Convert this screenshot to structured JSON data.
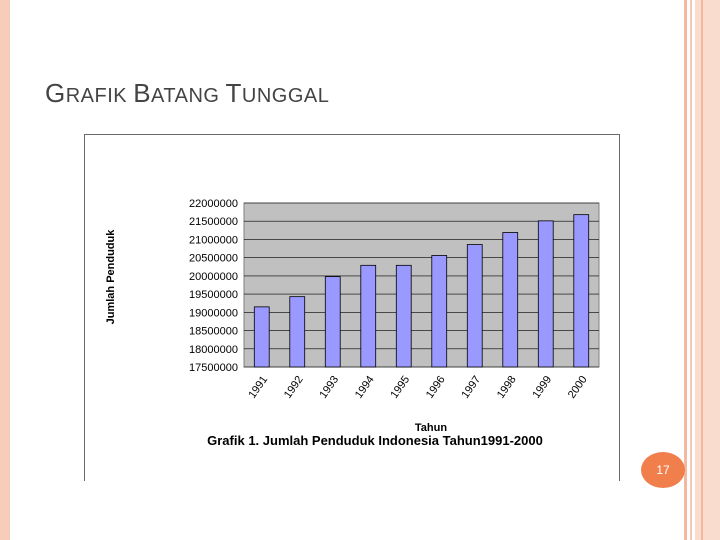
{
  "slide": {
    "title_parts": [
      {
        "big": "G",
        "small": "RAFIK "
      },
      {
        "big": "B",
        "small": "ATANG "
      },
      {
        "big": "T",
        "small": "UNGGAL"
      }
    ],
    "page_number": "17"
  },
  "colors": {
    "bar": "#9999ff",
    "plot_bg": "#c0c0c0",
    "accent": "#f07f4c"
  },
  "chart_data": {
    "type": "bar",
    "title": "Grafik 1. Jumlah Penduduk Indonesia Tahun1991-2000",
    "xlabel": "Tahun",
    "ylabel": "Jumlah Penduduk",
    "categories": [
      "1991",
      "1992",
      "1993",
      "1994",
      "1995",
      "1996",
      "1997",
      "1998",
      "1999",
      "2000"
    ],
    "values": [
      19150000,
      19430000,
      19980000,
      20290000,
      20290000,
      20560000,
      20860000,
      21190000,
      21510000,
      21680000
    ],
    "ylim": [
      17500000,
      22000000
    ],
    "yticks": [
      "17500000",
      "18000000",
      "18500000",
      "19000000",
      "19500000",
      "20000000",
      "20500000",
      "21000000",
      "21500000",
      "22000000"
    ],
    "grid": true,
    "legend": "none"
  }
}
